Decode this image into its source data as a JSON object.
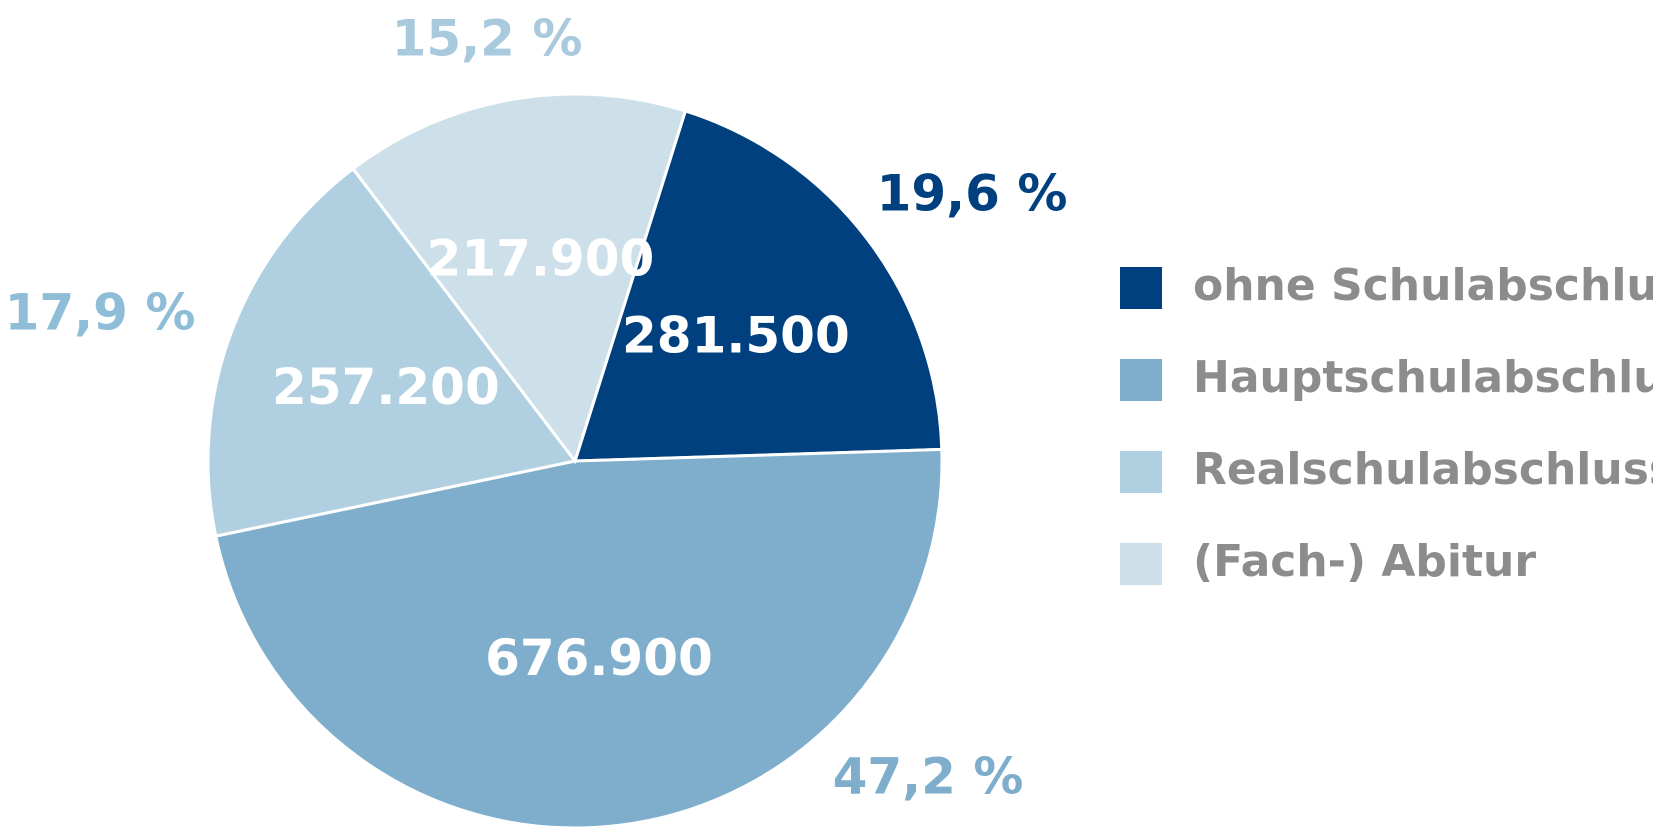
{
  "chart_data": {
    "type": "pie",
    "categories": [
      "ohne Schulabschluss",
      "Hauptschulabschluss",
      "Realschulabschluss",
      "(Fach-) Abitur"
    ],
    "values": [
      281500,
      676900,
      257200,
      217900
    ],
    "value_labels": [
      "281.500",
      "676.900",
      "257.200",
      "217.900"
    ],
    "percent_labels": [
      "19,6 %",
      "47,2 %",
      "17,9 %",
      "15,2 %"
    ],
    "colors": [
      "#00407f",
      "#7eaecb",
      "#b0cfe0",
      "#cde0ea"
    ],
    "legend": "right"
  }
}
